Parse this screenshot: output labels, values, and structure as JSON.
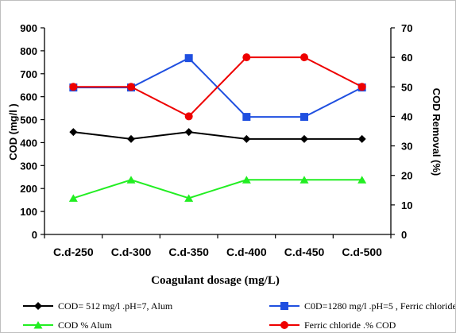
{
  "chart_data": {
    "type": "line",
    "title": "",
    "xlabel": "Coagulant dosage (mg/L)",
    "ylabel_left": "COD (mg/l )",
    "ylabel_right": "COD Removal (%)",
    "ylim_left": [
      0,
      900
    ],
    "ylim_right": [
      0,
      70
    ],
    "yticks_left": [
      "0",
      "100",
      "200",
      "300",
      "400",
      "500",
      "600",
      "700",
      "800",
      "900"
    ],
    "yticks_right": [
      "0",
      "10",
      "20",
      "30",
      "40",
      "50",
      "60",
      "70"
    ],
    "categories": [
      "C.d-250",
      "C.d-300",
      "C.d-350",
      "C.d-400",
      "C.d-450",
      "C.d-500"
    ],
    "grid": false,
    "legend_position": "bottom",
    "series": [
      {
        "name": "COD= 512 mg/l .pH=7, Alum",
        "axis": "left",
        "color": "#000000",
        "marker": "diamond",
        "values": [
          446,
          416,
          446,
          416,
          416,
          416
        ]
      },
      {
        "name": "C0D=1280 mg/l   .pH=5 , Ferric chloride",
        "axis": "left",
        "color": "#1f4fe0",
        "marker": "square",
        "values": [
          640,
          640,
          768,
          512,
          512,
          640
        ]
      },
      {
        "name": "COD % Alum",
        "axis": "right",
        "color": "#22ee22",
        "marker": "triangle",
        "values": [
          12.3,
          18.5,
          12.3,
          18.5,
          18.5,
          18.5
        ]
      },
      {
        "name": "Ferric chloride .% COD",
        "axis": "right",
        "color": "#ee0000",
        "marker": "circle",
        "values": [
          50,
          50,
          40,
          60,
          60,
          50
        ]
      }
    ]
  }
}
